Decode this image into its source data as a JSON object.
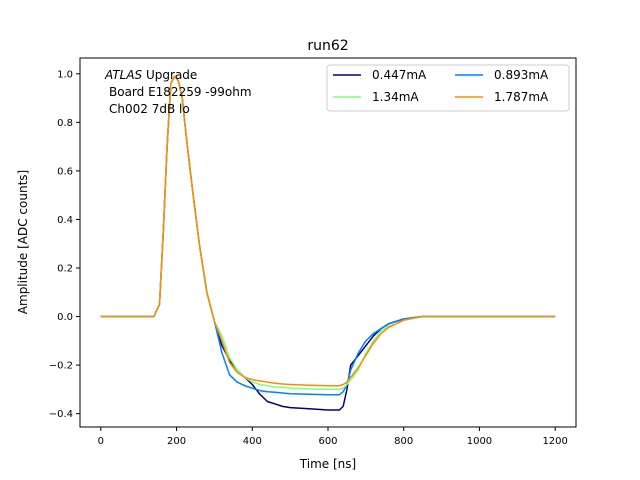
{
  "chart_data": {
    "type": "line",
    "title": "run62",
    "xlabel": "Time [ns]",
    "ylabel": "Amplitude [ADC counts]",
    "xlim": [
      -55,
      1255
    ],
    "ylim": [
      -0.455,
      1.065
    ],
    "xticks": [
      0,
      200,
      400,
      600,
      800,
      1000,
      1200
    ],
    "yticks": [
      -0.4,
      -0.2,
      0.0,
      0.2,
      0.4,
      0.6,
      0.8,
      1.0
    ],
    "xtick_labels": [
      "0",
      "200",
      "400",
      "600",
      "800",
      "1000",
      "1200"
    ],
    "ytick_labels": [
      "−0.4",
      "−0.2",
      "0.0",
      "0.2",
      "0.4",
      "0.6",
      "0.8",
      "1.0"
    ],
    "grid": false,
    "legend": {
      "placement": "top-right",
      "columns": 2
    },
    "annotation": {
      "italic": "ATLAS",
      "rest": " Upgrade",
      "line2": "Board E182259 -99ohm",
      "line3": "Ch002 7dB lo"
    },
    "series": [
      {
        "name": "0.447mA",
        "color": "#00007f",
        "x": [
          0,
          100,
          140,
          155,
          165,
          175,
          185,
          195,
          205,
          215,
          225,
          240,
          260,
          280,
          300,
          320,
          340,
          360,
          380,
          400,
          420,
          440,
          460,
          480,
          500,
          550,
          600,
          630,
          640,
          650,
          660,
          680,
          700,
          720,
          740,
          760,
          780,
          800,
          850,
          900,
          1000,
          1100,
          1200
        ],
        "y": [
          0,
          0,
          0,
          0.05,
          0.35,
          0.7,
          0.96,
          0.99,
          0.97,
          0.9,
          0.75,
          0.55,
          0.3,
          0.1,
          -0.02,
          -0.12,
          -0.18,
          -0.22,
          -0.25,
          -0.28,
          -0.32,
          -0.35,
          -0.36,
          -0.37,
          -0.375,
          -0.38,
          -0.385,
          -0.385,
          -0.37,
          -0.3,
          -0.2,
          -0.16,
          -0.12,
          -0.08,
          -0.05,
          -0.03,
          -0.02,
          -0.01,
          0,
          0,
          0,
          0,
          0
        ]
      },
      {
        "name": "0.893mA",
        "color": "#0080ff",
        "x": [
          0,
          100,
          140,
          155,
          165,
          175,
          185,
          195,
          205,
          215,
          225,
          240,
          260,
          280,
          300,
          320,
          340,
          360,
          380,
          400,
          420,
          440,
          460,
          480,
          500,
          550,
          600,
          630,
          640,
          650,
          660,
          680,
          700,
          720,
          740,
          760,
          780,
          800,
          850,
          900,
          1000,
          1100,
          1200
        ],
        "y": [
          0,
          0,
          0,
          0.05,
          0.35,
          0.7,
          0.96,
          0.99,
          0.97,
          0.9,
          0.75,
          0.55,
          0.3,
          0.1,
          -0.02,
          -0.15,
          -0.24,
          -0.27,
          -0.285,
          -0.295,
          -0.305,
          -0.31,
          -0.312,
          -0.315,
          -0.318,
          -0.32,
          -0.322,
          -0.322,
          -0.31,
          -0.28,
          -0.22,
          -0.15,
          -0.1,
          -0.07,
          -0.05,
          -0.03,
          -0.02,
          -0.01,
          0,
          0,
          0,
          0,
          0
        ]
      },
      {
        "name": "1.34mA",
        "color": "#7fff7f",
        "x": [
          0,
          100,
          140,
          155,
          165,
          175,
          185,
          195,
          205,
          215,
          225,
          240,
          260,
          280,
          300,
          320,
          340,
          360,
          380,
          400,
          420,
          440,
          460,
          480,
          500,
          550,
          600,
          630,
          640,
          650,
          660,
          680,
          700,
          720,
          740,
          760,
          780,
          800,
          850,
          900,
          1000,
          1100,
          1200
        ],
        "y": [
          0,
          0,
          0,
          0.05,
          0.35,
          0.7,
          0.96,
          0.99,
          0.97,
          0.9,
          0.75,
          0.55,
          0.3,
          0.1,
          -0.02,
          -0.08,
          -0.17,
          -0.22,
          -0.25,
          -0.27,
          -0.28,
          -0.285,
          -0.29,
          -0.292,
          -0.295,
          -0.298,
          -0.3,
          -0.3,
          -0.295,
          -0.28,
          -0.26,
          -0.22,
          -0.15,
          -0.1,
          -0.06,
          -0.04,
          -0.03,
          -0.015,
          0,
          0,
          0,
          0,
          0
        ]
      },
      {
        "name": "1.787mA",
        "color": "#ff8c00",
        "x": [
          0,
          100,
          140,
          155,
          165,
          175,
          185,
          195,
          205,
          215,
          225,
          240,
          260,
          280,
          300,
          320,
          340,
          360,
          380,
          400,
          420,
          440,
          460,
          480,
          500,
          550,
          600,
          630,
          640,
          650,
          660,
          680,
          700,
          720,
          740,
          760,
          780,
          800,
          850,
          900,
          1000,
          1100,
          1200
        ],
        "y": [
          0,
          0,
          0,
          0.05,
          0.35,
          0.7,
          0.96,
          0.99,
          0.97,
          0.9,
          0.75,
          0.55,
          0.3,
          0.1,
          -0.02,
          -0.1,
          -0.19,
          -0.23,
          -0.25,
          -0.26,
          -0.265,
          -0.27,
          -0.275,
          -0.278,
          -0.28,
          -0.283,
          -0.285,
          -0.285,
          -0.28,
          -0.27,
          -0.25,
          -0.21,
          -0.16,
          -0.11,
          -0.07,
          -0.045,
          -0.03,
          -0.015,
          0,
          0,
          0,
          0,
          0
        ]
      }
    ]
  }
}
